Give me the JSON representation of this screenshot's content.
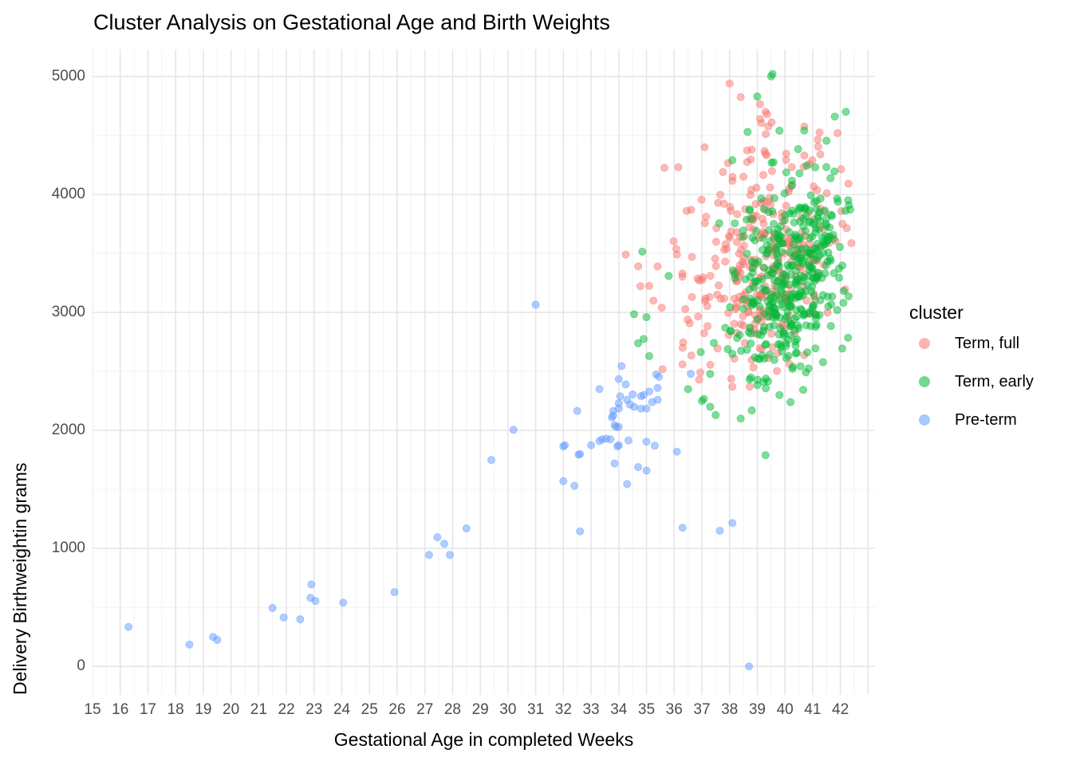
{
  "page": {
    "title": "Cluster Analysis on Gestational Age and Birth Weights"
  },
  "chart_data": {
    "type": "scatter",
    "title": "Cluster Analysis on Gestational Age and Birth Weights",
    "xlabel": "Gestational Age in completed Weeks",
    "ylabel": "Delivery Birthweightin grams",
    "xlim": [
      15,
      43.25
    ],
    "ylim": [
      -241,
      5229
    ],
    "x_ticks": [
      15,
      16,
      17,
      18,
      19,
      20,
      21,
      22,
      23,
      24,
      25,
      26,
      27,
      28,
      29,
      30,
      31,
      32,
      33,
      34,
      35,
      36,
      37,
      38,
      39,
      40,
      41,
      42
    ],
    "y_ticks": [
      0,
      1000,
      2000,
      3000,
      4000,
      5000
    ],
    "x_grid_major": [
      15,
      16,
      17,
      18,
      19,
      20,
      21,
      22,
      23,
      24,
      25,
      26,
      27,
      28,
      29,
      30,
      31,
      32,
      33,
      34,
      35,
      36,
      37,
      38,
      39,
      40,
      41,
      42,
      43
    ],
    "x_grid_minor": [
      15.5,
      16.5,
      17.5,
      18.5,
      19.5,
      20.5,
      21.5,
      22.5,
      23.5,
      24.5,
      25.5,
      26.5,
      27.5,
      28.5,
      29.5,
      30.5,
      31.5,
      32.5,
      33.5,
      34.5,
      35.5,
      36.5,
      37.5,
      38.5,
      39.5,
      40.5,
      41.5,
      42.5
    ],
    "y_grid_major": [
      0,
      1000,
      2000,
      3000,
      4000,
      5000
    ],
    "y_grid_minor": [
      500,
      1500,
      2500,
      3500,
      4500
    ],
    "grid_color_major": "#e6e6e6",
    "grid_color_minor": "#f2f2f2",
    "tick_label_color": "#4d4d4d",
    "point_radius": 4.6,
    "point_alpha": 0.5,
    "legend": {
      "title": "cluster",
      "position": "right",
      "entries": [
        {
          "label": "Term, full",
          "color": "#F8766D"
        },
        {
          "label": "Term, early",
          "color": "#00BA38"
        },
        {
          "label": "Pre-term",
          "color": "#619CFF"
        }
      ]
    },
    "series": [
      {
        "name": "Term, full",
        "color": "#F8766D",
        "generate": {
          "n": 310,
          "seed": 7,
          "cx": 39.35,
          "cy": 3480,
          "sx": 1.45,
          "sy": 480,
          "rho": 0.28,
          "xmin": 34.2,
          "xmax": 42.4,
          "ymin": 2350,
          "ymax": 5010
        },
        "points": [
          [
            35.65,
            4225
          ],
          [
            38.0,
            4940
          ],
          [
            38.4,
            4825
          ],
          [
            39.1,
            4765
          ],
          [
            39.3,
            4700
          ],
          [
            39.35,
            4680
          ],
          [
            39.1,
            4640
          ],
          [
            39.15,
            4605
          ],
          [
            39.4,
            4575
          ],
          [
            40.7,
            4575
          ],
          [
            41.25,
            4525
          ],
          [
            41.9,
            4520
          ],
          [
            37.1,
            4400
          ],
          [
            38.8,
            4380
          ],
          [
            39.3,
            4345
          ],
          [
            40.7,
            4330
          ],
          [
            41.2,
            4405
          ],
          [
            34.25,
            3490
          ],
          [
            34.7,
            3390
          ],
          [
            35.4,
            3390
          ],
          [
            35.1,
            3225
          ],
          [
            35.25,
            3100
          ],
          [
            35.55,
            3040
          ],
          [
            36.1,
            3490
          ],
          [
            38.1,
            2370
          ],
          [
            36.3,
            2560
          ],
          [
            36.9,
            2430
          ],
          [
            36.15,
            4230
          ]
        ]
      },
      {
        "name": "Term, early",
        "color": "#00BA38",
        "generate": {
          "n": 400,
          "seed": 13,
          "cx": 40.15,
          "cy": 3270,
          "sx": 1.15,
          "sy": 430,
          "rho": 0.33,
          "xmin": 34.5,
          "xmax": 42.4,
          "ymin": 2080,
          "ymax": 4870
        },
        "points": [
          [
            39.5,
            5000
          ],
          [
            39.55,
            5020
          ],
          [
            39.0,
            4830
          ],
          [
            39.8,
            4540
          ],
          [
            41.8,
            4660
          ],
          [
            41.5,
            4455
          ],
          [
            42.2,
            4700
          ],
          [
            38.65,
            4530
          ],
          [
            38.1,
            4290
          ],
          [
            34.85,
            3515
          ],
          [
            35.8,
            3310
          ],
          [
            34.55,
            2985
          ],
          [
            35.0,
            2960
          ],
          [
            34.9,
            2775
          ],
          [
            34.7,
            2740
          ],
          [
            35.1,
            2630
          ],
          [
            39.3,
            1790
          ],
          [
            38.4,
            2100
          ],
          [
            38.8,
            2170
          ],
          [
            39.8,
            2300
          ],
          [
            40.2,
            2240
          ],
          [
            40.85,
            2525
          ],
          [
            36.5,
            2350
          ],
          [
            37.0,
            2250
          ],
          [
            37.3,
            2200
          ],
          [
            37.5,
            2130
          ]
        ]
      },
      {
        "name": "Pre-term",
        "color": "#619CFF",
        "points": [
          [
            16.3,
            335
          ],
          [
            18.5,
            185
          ],
          [
            19.35,
            250
          ],
          [
            19.5,
            225
          ],
          [
            21.5,
            495
          ],
          [
            21.9,
            415
          ],
          [
            22.5,
            400
          ],
          [
            22.87,
            580
          ],
          [
            22.9,
            695
          ],
          [
            23.05,
            555
          ],
          [
            24.05,
            540
          ],
          [
            25.9,
            630
          ],
          [
            27.15,
            945
          ],
          [
            27.45,
            1095
          ],
          [
            27.7,
            1040
          ],
          [
            27.9,
            945
          ],
          [
            28.5,
            1170
          ],
          [
            29.4,
            1750
          ],
          [
            30.2,
            2005
          ],
          [
            31.0,
            3065
          ],
          [
            32.0,
            1865
          ],
          [
            32.05,
            1875
          ],
          [
            32.0,
            1570
          ],
          [
            32.4,
            1530
          ],
          [
            32.5,
            2165
          ],
          [
            32.55,
            1795
          ],
          [
            32.6,
            1800
          ],
          [
            32.6,
            1145
          ],
          [
            33.0,
            1875
          ],
          [
            33.3,
            2350
          ],
          [
            33.3,
            1910
          ],
          [
            33.4,
            1925
          ],
          [
            33.55,
            1930
          ],
          [
            33.7,
            1925
          ],
          [
            33.75,
            2110
          ],
          [
            33.8,
            2165
          ],
          [
            33.8,
            2125
          ],
          [
            33.85,
            2045
          ],
          [
            33.85,
            1720
          ],
          [
            33.9,
            2030
          ],
          [
            33.95,
            1865
          ],
          [
            34.0,
            2435
          ],
          [
            34.0,
            2230
          ],
          [
            34.0,
            2185
          ],
          [
            34.0,
            2030
          ],
          [
            34.0,
            1875
          ],
          [
            34.05,
            2290
          ],
          [
            34.1,
            2545
          ],
          [
            34.25,
            2390
          ],
          [
            34.3,
            2260
          ],
          [
            34.3,
            1545
          ],
          [
            34.35,
            1915
          ],
          [
            34.4,
            2220
          ],
          [
            34.5,
            2305
          ],
          [
            34.55,
            2200
          ],
          [
            34.7,
            1690
          ],
          [
            34.8,
            2290
          ],
          [
            34.8,
            2185
          ],
          [
            34.9,
            2300
          ],
          [
            35.0,
            2185
          ],
          [
            35.0,
            1905
          ],
          [
            35.0,
            1660
          ],
          [
            35.1,
            2330
          ],
          [
            35.2,
            2240
          ],
          [
            35.3,
            1870
          ],
          [
            35.35,
            2475
          ],
          [
            35.45,
            2455
          ],
          [
            35.4,
            2360
          ],
          [
            35.4,
            2260
          ],
          [
            36.1,
            1820
          ],
          [
            36.3,
            1175
          ],
          [
            36.6,
            2480
          ],
          [
            37.65,
            1150
          ],
          [
            38.1,
            1215
          ],
          [
            38.7,
            0
          ]
        ]
      }
    ]
  }
}
